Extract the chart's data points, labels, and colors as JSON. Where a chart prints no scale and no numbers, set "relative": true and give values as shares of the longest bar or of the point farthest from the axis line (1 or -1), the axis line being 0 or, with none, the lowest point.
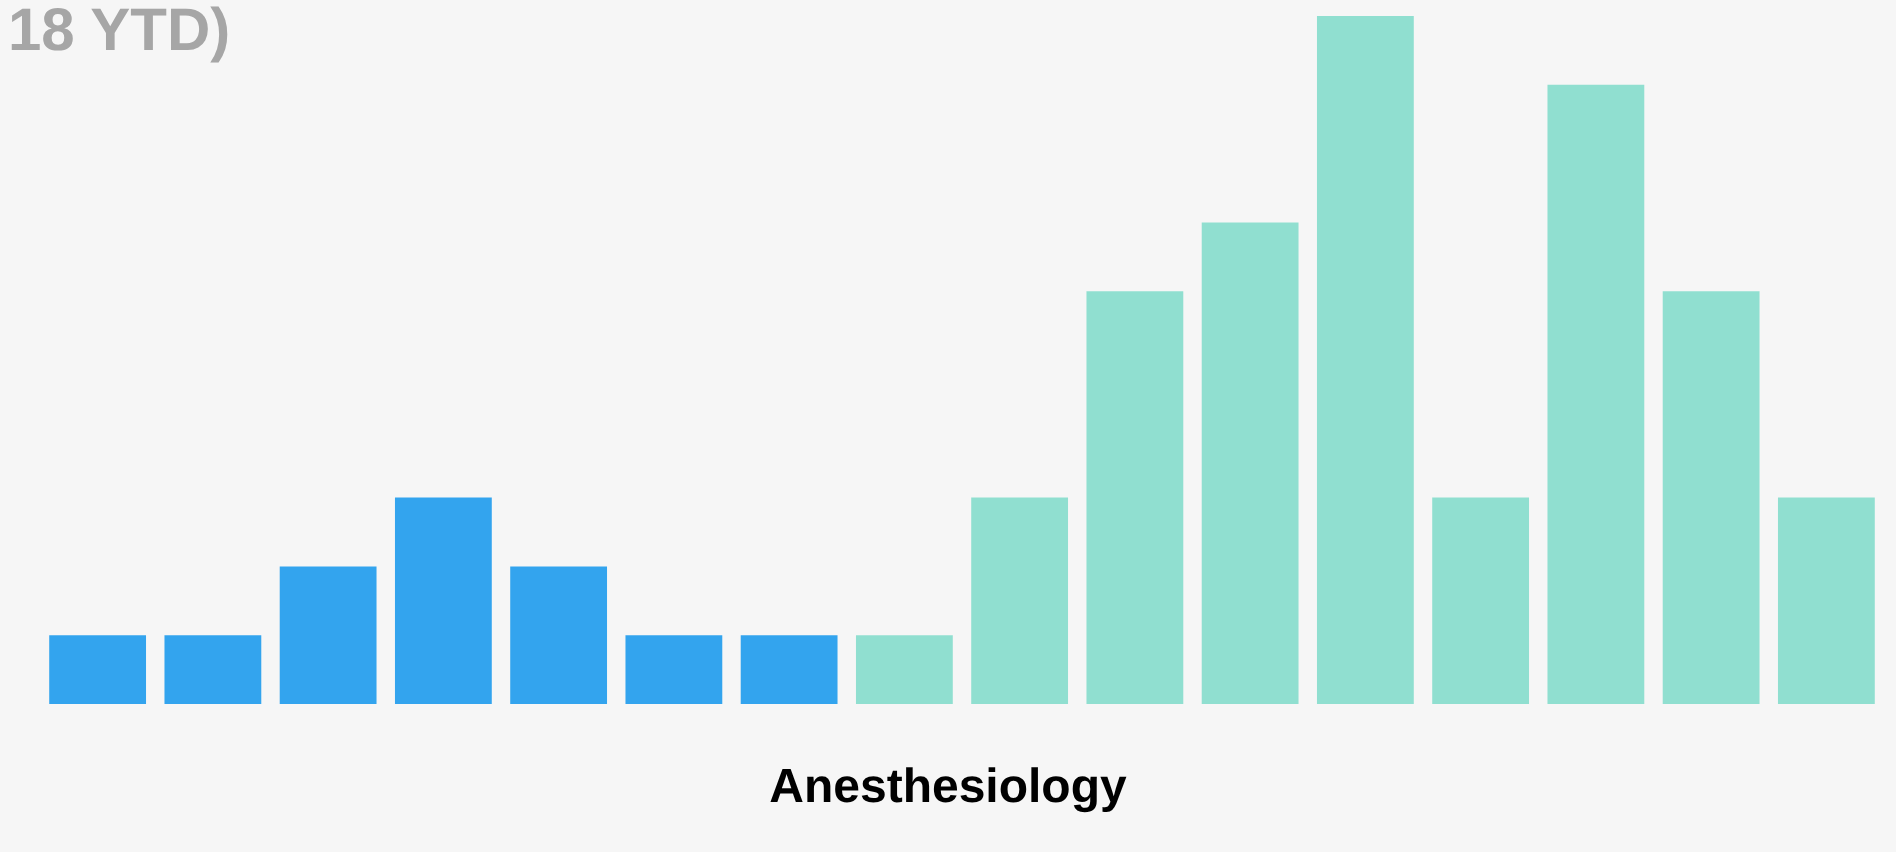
{
  "chart_data": {
    "type": "bar",
    "title": "18 YTD)",
    "xlabel": "Anesthesiology",
    "relative": true,
    "categories": [
      null,
      null,
      null,
      null,
      null,
      null,
      null,
      null,
      null,
      null,
      null,
      null,
      null,
      null,
      null,
      null
    ],
    "values": [
      0.1,
      0.1,
      0.2,
      0.3,
      0.2,
      0.1,
      0.1,
      0.1,
      0.3,
      0.6,
      0.7,
      1,
      0.3,
      0.9,
      0.6,
      0.3
    ],
    "colors": [
      "#33a4ee",
      "#33a4ee",
      "#33a4ee",
      "#33a4ee",
      "#33a4ee",
      "#33a4ee",
      "#33a4ee",
      "#90dfd0",
      "#90dfd0",
      "#90dfd0",
      "#90dfd0",
      "#90dfd0",
      "#90dfd0",
      "#90dfd0",
      "#90dfd0",
      "#90dfd0"
    ]
  }
}
